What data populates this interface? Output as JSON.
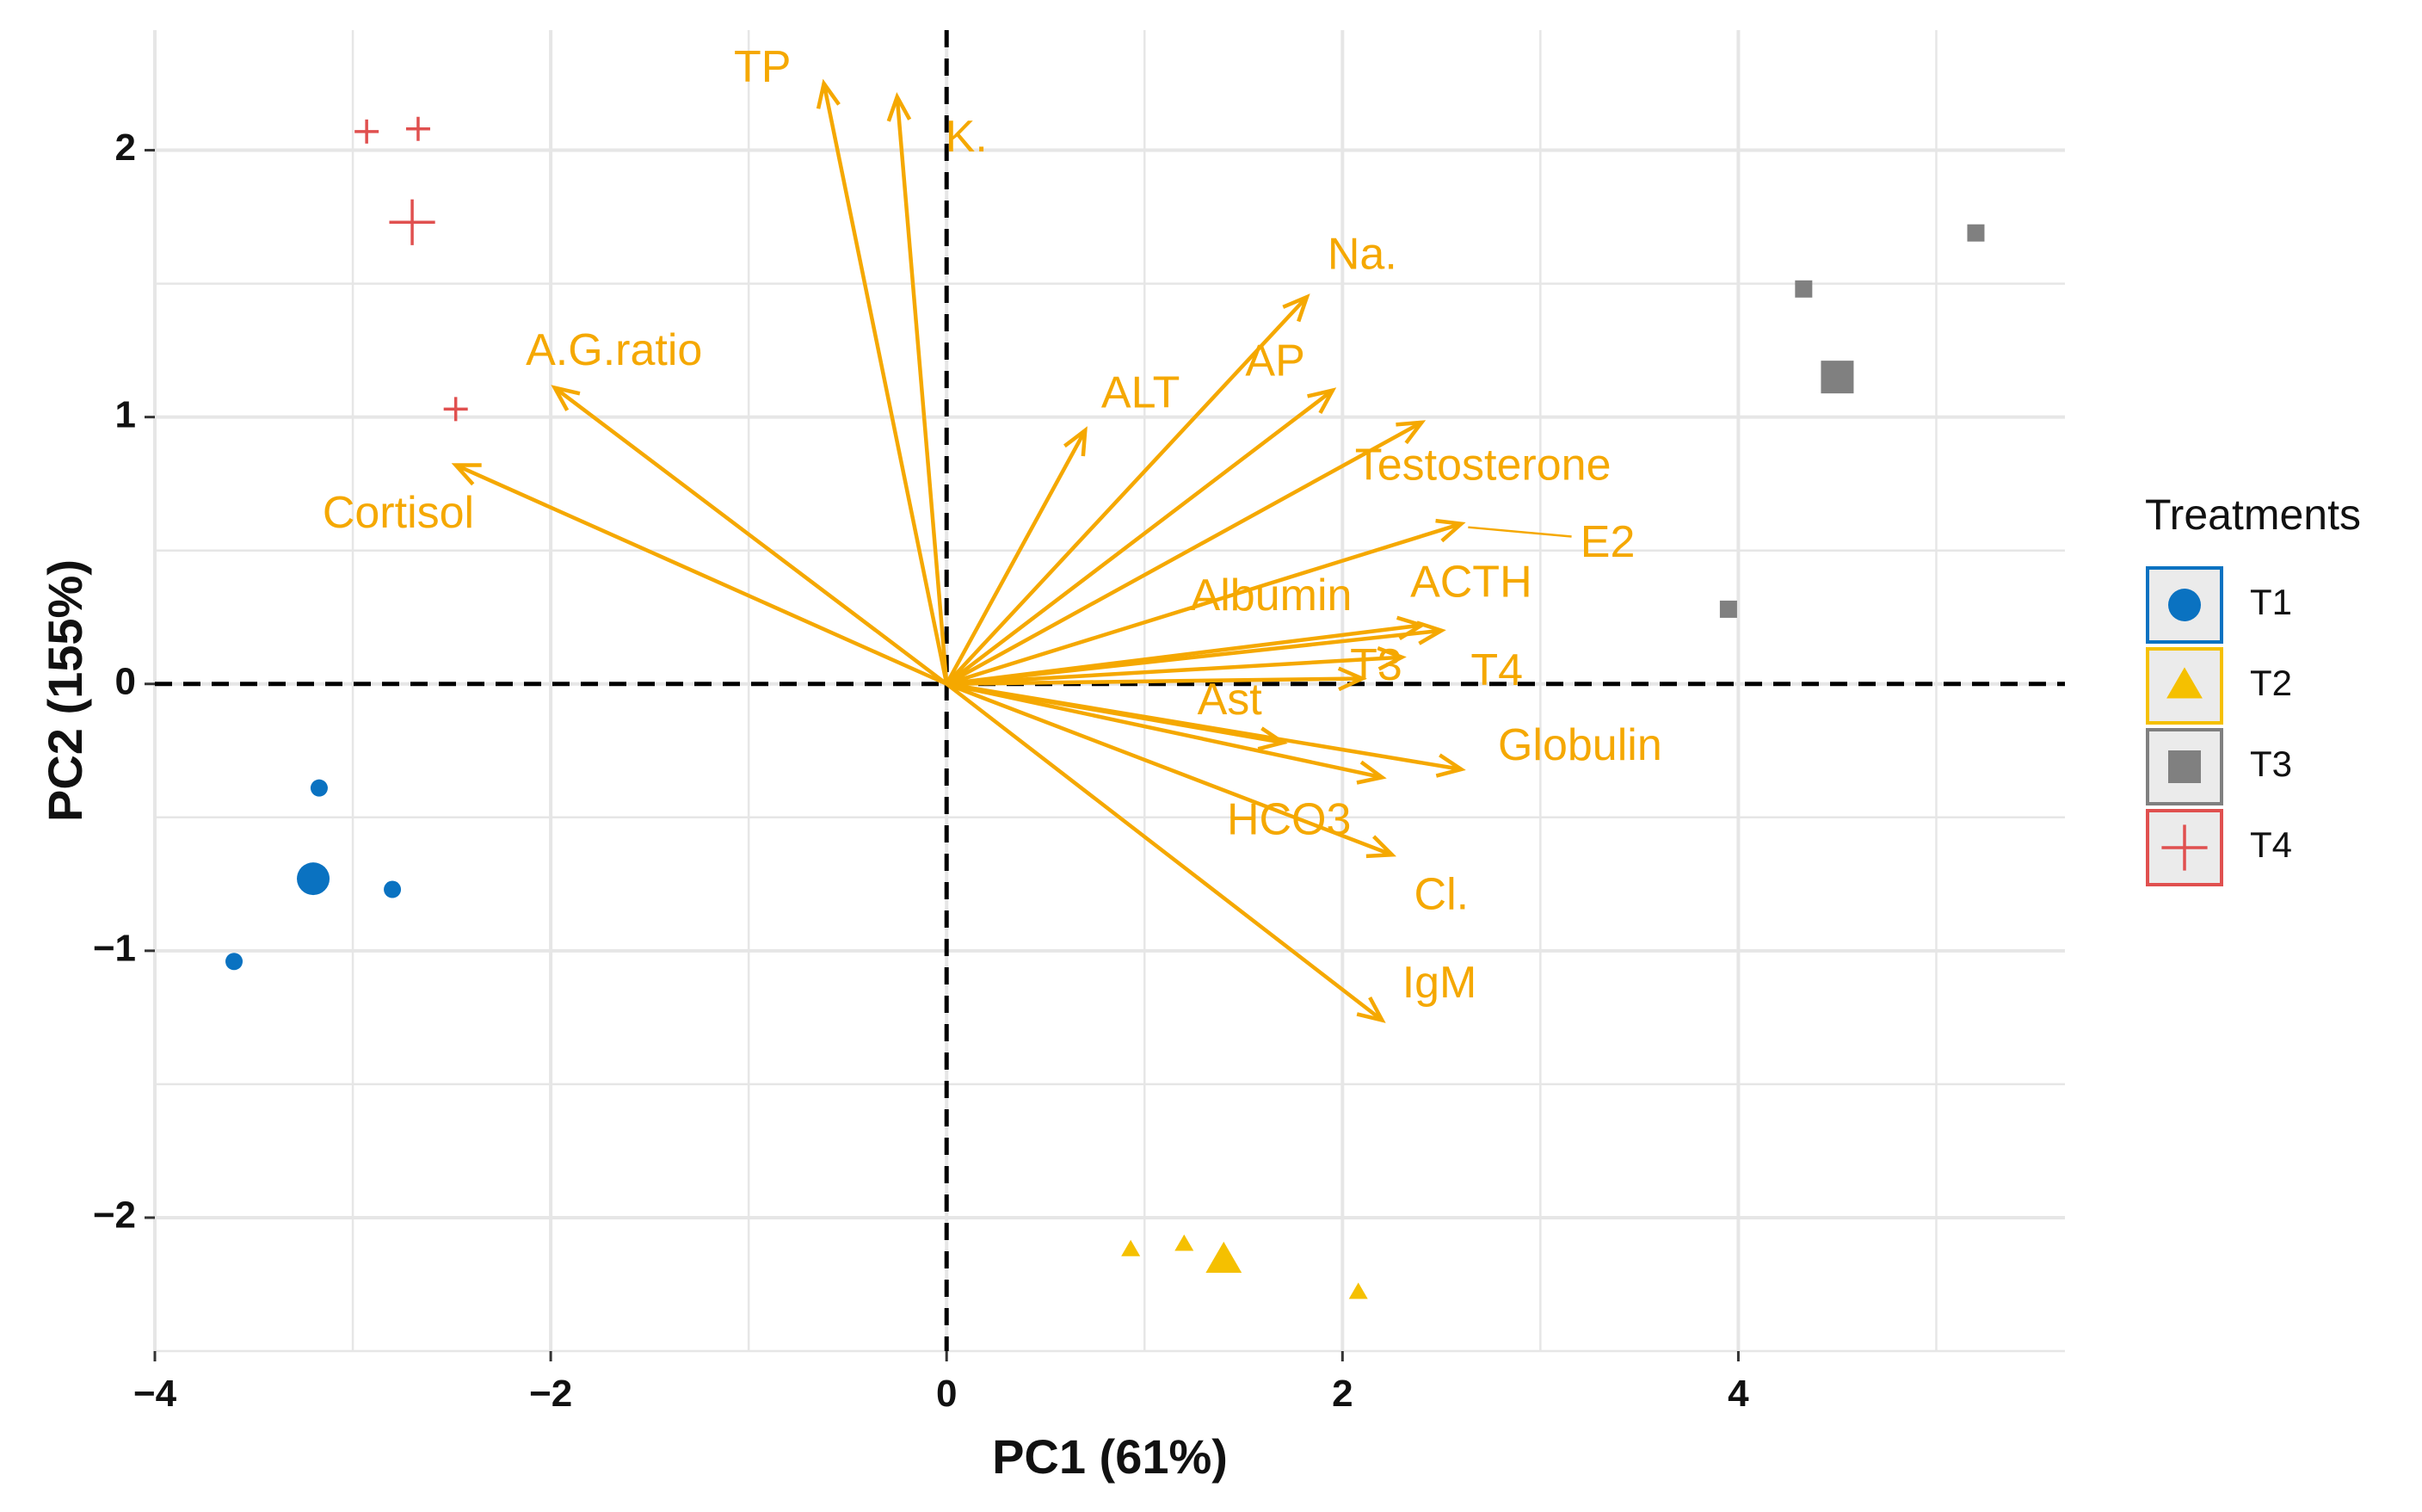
{
  "chart_data": {
    "type": "scatter",
    "subtype": "pca-biplot",
    "xlabel": "PC1 (61%)",
    "ylabel": "PC2 (155%)",
    "xlim": [
      -4,
      5.65
    ],
    "ylim": [
      -2.5,
      2.45
    ],
    "x_ticks": [
      -4,
      -2,
      0,
      2,
      4
    ],
    "y_ticks": [
      -2,
      -1,
      0,
      1,
      2
    ],
    "x_tick_labels": [
      "−4",
      "−2",
      "0",
      "2",
      "4"
    ],
    "y_tick_labels": [
      "−2",
      "−1",
      "0",
      "1",
      "2"
    ],
    "grid": true,
    "reference_lines": {
      "x": 0,
      "y": 0,
      "style": "dashed"
    },
    "legend": {
      "title": "Treatments",
      "position": "right",
      "entries": [
        {
          "label": "T1",
          "color": "#0a72c1",
          "shape": "circle"
        },
        {
          "label": "T2",
          "color": "#f5c000",
          "shape": "triangle"
        },
        {
          "label": "T3",
          "color": "#808080",
          "shape": "square"
        },
        {
          "label": "T4",
          "color": "#e0504f",
          "shape": "plus"
        }
      ]
    },
    "series": [
      {
        "name": "T1",
        "color": "#0a72c1",
        "shape": "circle",
        "points": [
          [
            -3.17,
            -0.39
          ],
          [
            -2.8,
            -0.77
          ],
          [
            -3.6,
            -1.04
          ]
        ],
        "centroid": [
          -3.2,
          -0.73
        ]
      },
      {
        "name": "T2",
        "color": "#f5c000",
        "shape": "triangle",
        "points": [
          [
            0.93,
            -2.12
          ],
          [
            1.2,
            -2.1
          ],
          [
            2.08,
            -2.28
          ]
        ],
        "centroid": [
          1.4,
          -2.16
        ]
      },
      {
        "name": "T3",
        "color": "#808080",
        "shape": "square",
        "points": [
          [
            4.33,
            1.48
          ],
          [
            5.2,
            1.69
          ],
          [
            3.95,
            0.28
          ]
        ],
        "centroid": [
          4.5,
          1.15
        ]
      },
      {
        "name": "T4",
        "color": "#e0504f",
        "shape": "plus",
        "points": [
          [
            -2.93,
            2.07
          ],
          [
            -2.67,
            2.08
          ],
          [
            -2.48,
            1.03
          ]
        ],
        "centroid": [
          -2.7,
          1.73
        ]
      }
    ],
    "arrow_color": "#f5a800",
    "arrows": [
      {
        "name": "TP",
        "x": -0.62,
        "y": 2.25,
        "label_x": -0.93,
        "label_y": 2.3
      },
      {
        "name": "K.",
        "x": -0.25,
        "y": 2.2,
        "label_x": 0.1,
        "label_y": 2.04
      },
      {
        "name": "Na.",
        "x": 1.82,
        "y": 1.45,
        "label_x": 2.1,
        "label_y": 1.6
      },
      {
        "name": "AP",
        "x": 1.95,
        "y": 1.1,
        "label_x": 1.66,
        "label_y": 1.2
      },
      {
        "name": "ALT",
        "x": 0.7,
        "y": 0.95,
        "label_x": 0.98,
        "label_y": 1.08
      },
      {
        "name": "Testosterone",
        "x": 2.4,
        "y": 0.98,
        "label_x": 2.71,
        "label_y": 0.81
      },
      {
        "name": "E2",
        "x": 2.6,
        "y": 0.6,
        "label_x": 3.34,
        "label_y": 0.52
      },
      {
        "name": "ACTH",
        "x": 2.4,
        "y": 0.22,
        "label_x": 2.65,
        "label_y": 0.37
      },
      {
        "name": "Albumin",
        "x": 2.5,
        "y": 0.2,
        "label_x": 1.64,
        "label_y": 0.32
      },
      {
        "name": "T3",
        "x": 2.3,
        "y": 0.1,
        "label_x": 2.17,
        "label_y": 0.06
      },
      {
        "name": "T4",
        "x": 2.1,
        "y": 0.02,
        "label_x": 2.78,
        "label_y": 0.04
      },
      {
        "name": "Ast",
        "x": 1.7,
        "y": -0.22,
        "label_x": 1.43,
        "label_y": -0.07
      },
      {
        "name": "Globulin",
        "x": 2.6,
        "y": -0.32,
        "label_x": 3.2,
        "label_y": -0.24
      },
      {
        "name": "HCO3",
        "x": 2.2,
        "y": -0.35,
        "label_x": 1.73,
        "label_y": -0.52
      },
      {
        "name": "Cl.",
        "x": 2.25,
        "y": -0.64,
        "label_x": 2.5,
        "label_y": -0.8
      },
      {
        "name": "IgM",
        "x": 2.2,
        "y": -1.26,
        "label_x": 2.49,
        "label_y": -1.13
      },
      {
        "name": "A.G.ratio",
        "x": -1.98,
        "y": 1.11,
        "label_x": -1.68,
        "label_y": 1.24
      },
      {
        "name": "Cortisol",
        "x": -2.48,
        "y": 0.82,
        "label_x": -2.77,
        "label_y": 0.63
      }
    ]
  }
}
